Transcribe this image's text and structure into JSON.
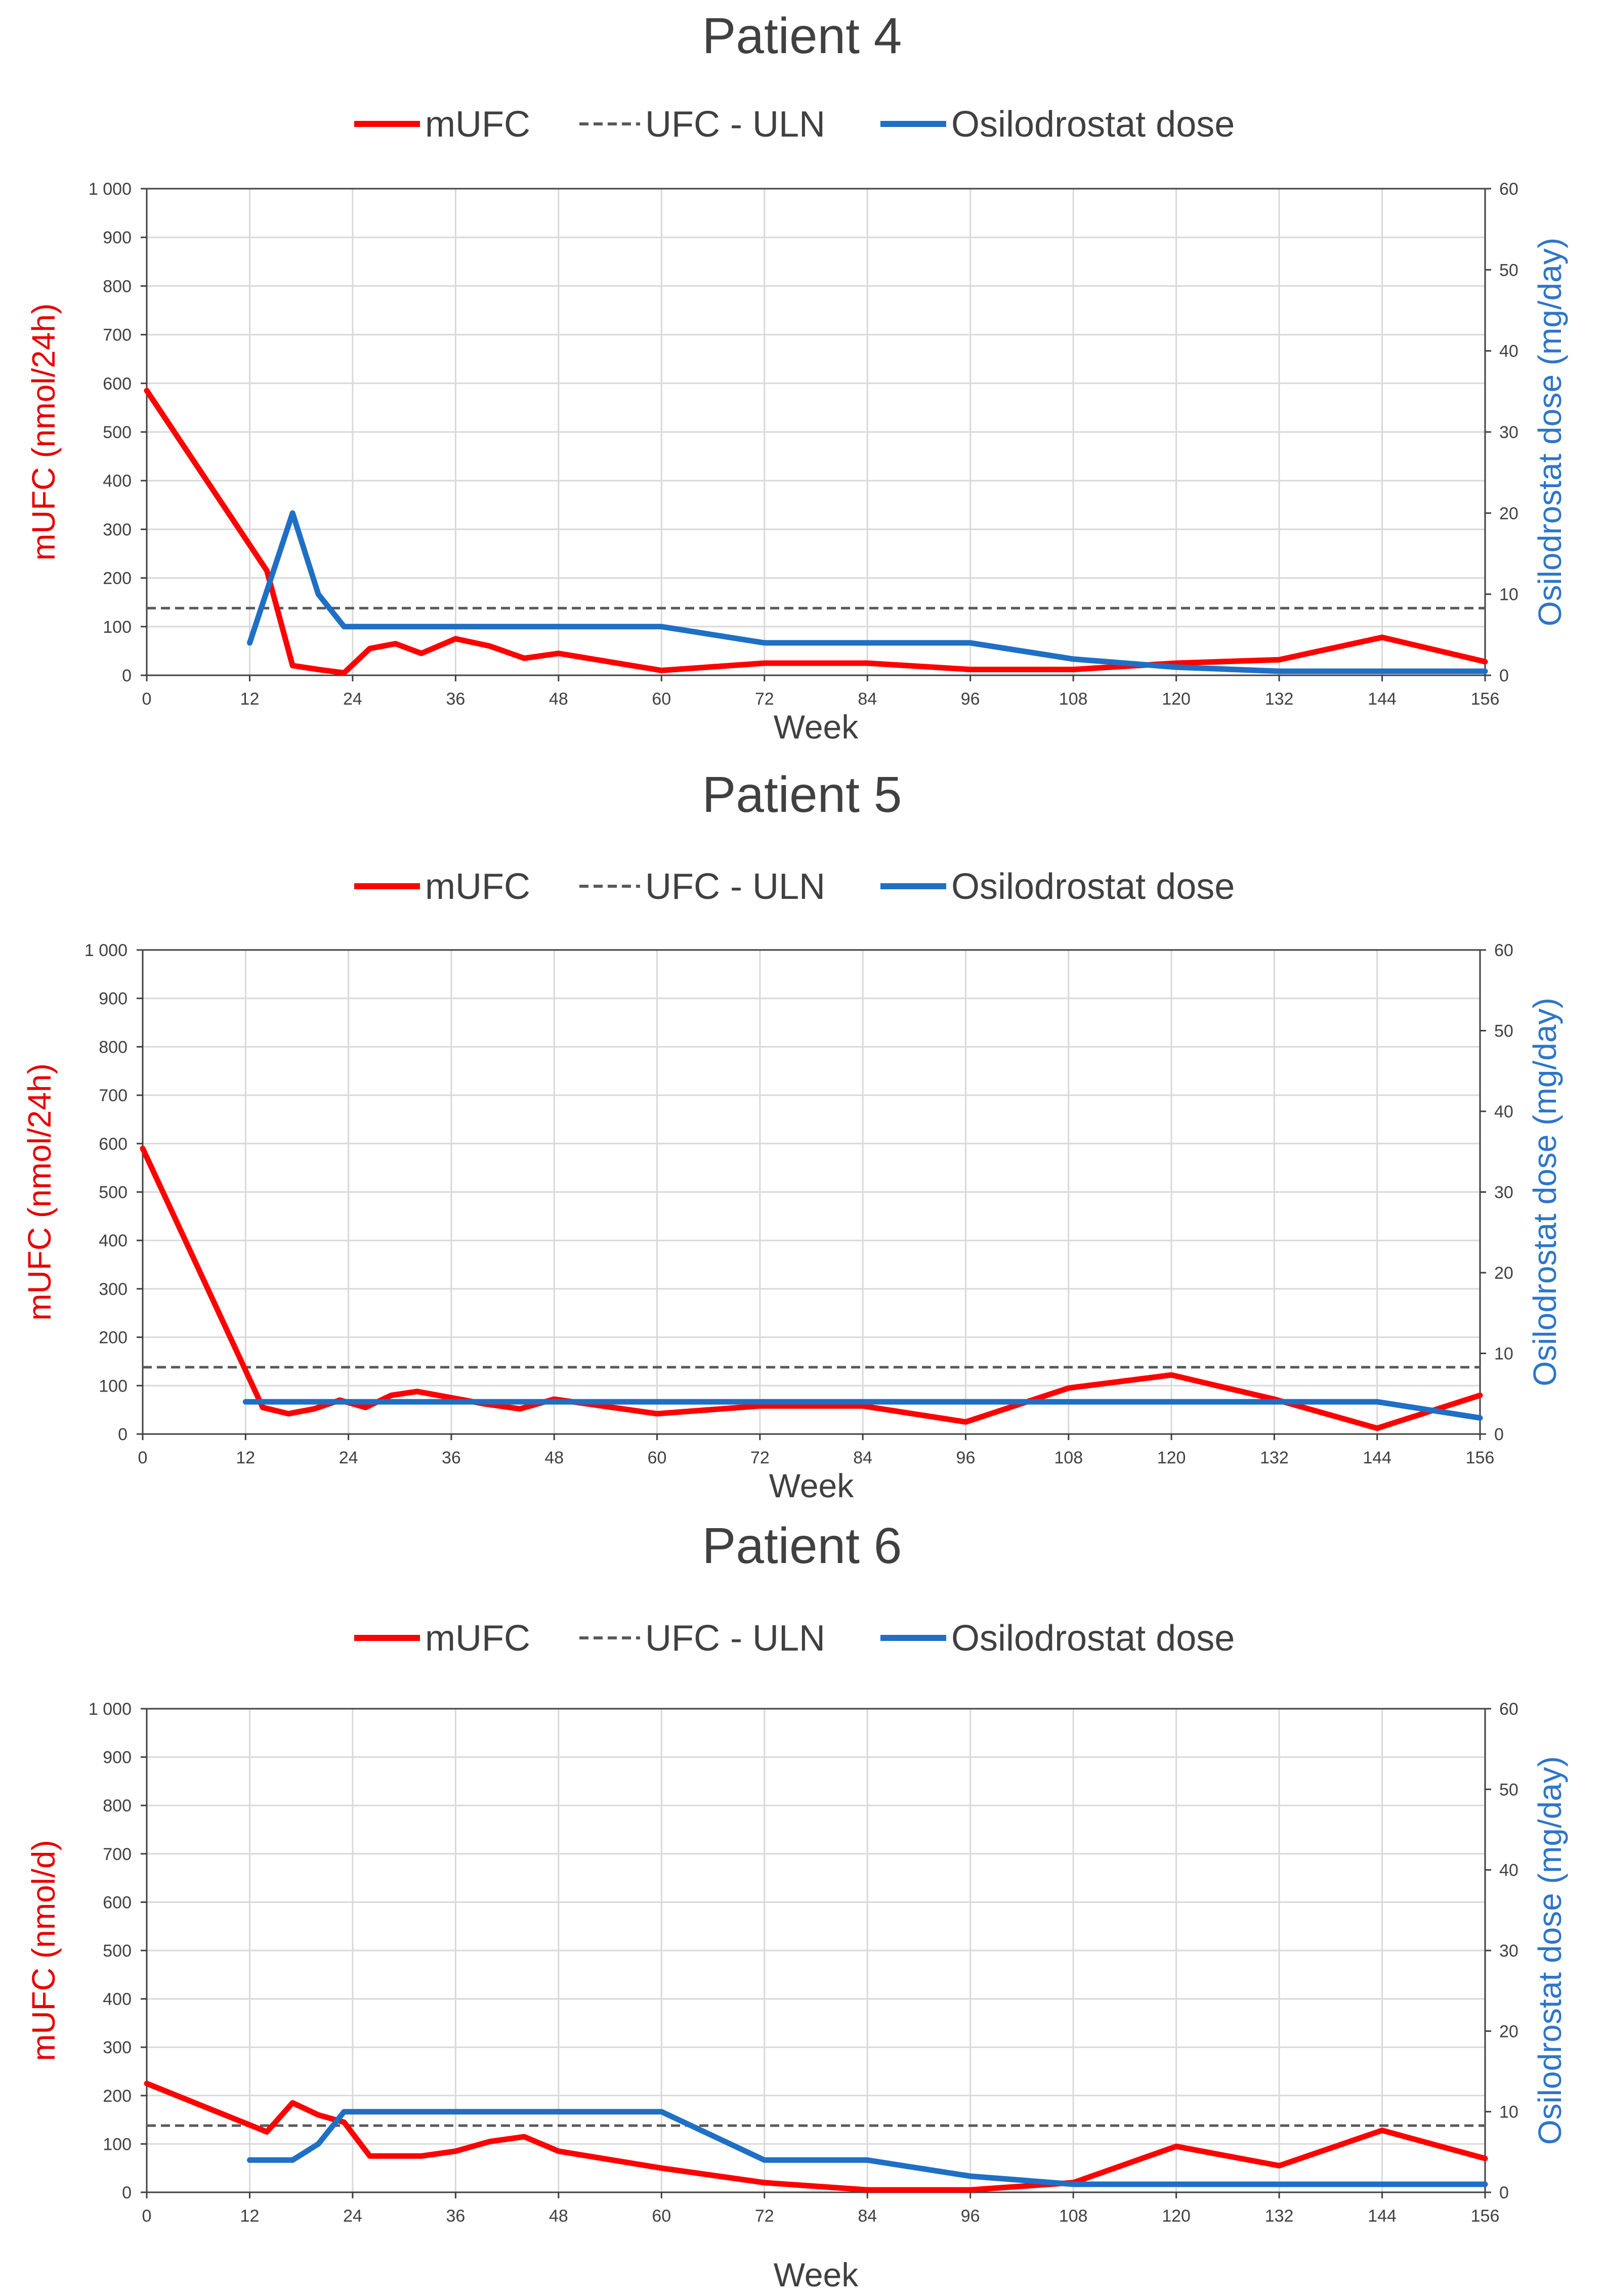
{
  "colors": {
    "mufc": "#ff0000",
    "uln": "#595959",
    "dose": "#1f6fc5",
    "grid": "#d9d9d9",
    "axis": "#404040",
    "left_label": "#e60000",
    "right_label": "#2e75c9"
  },
  "chart_data": [
    {
      "type": "line",
      "title": "Patient 4",
      "legend": {
        "mufc": "mUFC",
        "uln": "UFC - ULN",
        "dose": "Osilodrostat dose"
      },
      "xlabel": "Week",
      "ylabel": "mUFC (nmol/24h)",
      "y2label": "Osilodrostat dose (mg/day)",
      "xlim": [
        0,
        156
      ],
      "ylim": [
        0,
        1000
      ],
      "y2lim": [
        0,
        60
      ],
      "x_ticks": [
        "0",
        "12",
        "24",
        "36",
        "48",
        "60",
        "72",
        "84",
        "96",
        "108",
        "120",
        "132",
        "144",
        "156"
      ],
      "y_ticks": [
        "0",
        "100",
        "200",
        "300",
        "400",
        "500",
        "600",
        "700",
        "800",
        "900",
        "1 000"
      ],
      "y2_ticks": [
        "0",
        "10",
        "20",
        "30",
        "40",
        "50",
        "60"
      ],
      "uln": 138,
      "series": [
        {
          "name": "mUFC",
          "axis": "left",
          "x": [
            0,
            14,
            17,
            20,
            23,
            26,
            29,
            32,
            36,
            40,
            44,
            48,
            60,
            72,
            84,
            96,
            108,
            120,
            132,
            144,
            156
          ],
          "y": [
            585,
            215,
            20,
            12,
            5,
            55,
            65,
            45,
            75,
            60,
            35,
            45,
            10,
            25,
            25,
            12,
            12,
            25,
            32,
            78,
            28
          ]
        },
        {
          "name": "Osilodrostat dose",
          "axis": "right",
          "x": [
            12,
            17,
            20,
            23,
            60,
            72,
            96,
            108,
            120,
            132,
            144,
            156
          ],
          "y": [
            4,
            20,
            10,
            6,
            6,
            4,
            4,
            2,
            1,
            0.5,
            0.5,
            0.5
          ]
        }
      ]
    },
    {
      "type": "line",
      "title": "Patient 5",
      "legend": {
        "mufc": "mUFC",
        "uln": "UFC - ULN",
        "dose": "Osilodrostat dose"
      },
      "xlabel": "Week",
      "ylabel": "mUFC (nmol/24h)",
      "y2label": "Osilodrostat dose (mg/day)",
      "xlim": [
        0,
        156
      ],
      "ylim": [
        0,
        1000
      ],
      "y2lim": [
        0,
        60
      ],
      "x_ticks": [
        "0",
        "12",
        "24",
        "36",
        "48",
        "60",
        "72",
        "84",
        "96",
        "108",
        "120",
        "132",
        "144",
        "156"
      ],
      "y_ticks": [
        "0",
        "100",
        "200",
        "300",
        "400",
        "500",
        "600",
        "700",
        "800",
        "900",
        "1 000"
      ],
      "y2_ticks": [
        "0",
        "10",
        "20",
        "30",
        "40",
        "50",
        "60"
      ],
      "uln": 138,
      "series": [
        {
          "name": "mUFC",
          "axis": "left",
          "x": [
            0,
            14,
            17,
            20,
            23,
            26,
            29,
            32,
            36,
            40,
            44,
            48,
            60,
            72,
            84,
            96,
            108,
            120,
            132,
            144,
            156
          ],
          "y": [
            590,
            55,
            42,
            52,
            70,
            55,
            80,
            88,
            75,
            62,
            52,
            72,
            42,
            58,
            58,
            25,
            95,
            122,
            72,
            12,
            80
          ]
        },
        {
          "name": "Osilodrostat dose",
          "axis": "right",
          "x": [
            12,
            144,
            156
          ],
          "y": [
            4,
            4,
            2
          ]
        }
      ]
    },
    {
      "type": "line",
      "title": "Patient 6",
      "legend": {
        "mufc": "mUFC",
        "uln": "UFC - ULN",
        "dose": "Osilodrostat dose"
      },
      "xlabel": "Week",
      "ylabel": "mUFC (nmol/d)",
      "y2label": "Osilodrostat dose (mg/day)",
      "xlim": [
        0,
        156
      ],
      "ylim": [
        0,
        1000
      ],
      "y2lim": [
        0,
        60
      ],
      "x_ticks": [
        "0",
        "12",
        "24",
        "36",
        "48",
        "60",
        "72",
        "84",
        "96",
        "108",
        "120",
        "132",
        "144",
        "156"
      ],
      "y_ticks": [
        "0",
        "100",
        "200",
        "300",
        "400",
        "500",
        "600",
        "700",
        "800",
        "900",
        "1 000"
      ],
      "y2_ticks": [
        "0",
        "10",
        "20",
        "30",
        "40",
        "50",
        "60"
      ],
      "uln": 138,
      "series": [
        {
          "name": "mUFC",
          "axis": "left",
          "x": [
            0,
            14,
            17,
            20,
            23,
            26,
            32,
            36,
            40,
            44,
            48,
            60,
            72,
            84,
            96,
            108,
            120,
            132,
            144,
            156
          ],
          "y": [
            225,
            125,
            185,
            160,
            145,
            75,
            75,
            85,
            105,
            115,
            85,
            50,
            20,
            5,
            5,
            20,
            95,
            55,
            128,
            70
          ]
        },
        {
          "name": "Osilodrostat dose",
          "axis": "right",
          "x": [
            12,
            17,
            20,
            23,
            60,
            72,
            84,
            96,
            108,
            156
          ],
          "y": [
            4,
            4,
            6,
            10,
            10,
            4,
            4,
            2,
            1,
            1
          ]
        }
      ]
    }
  ]
}
